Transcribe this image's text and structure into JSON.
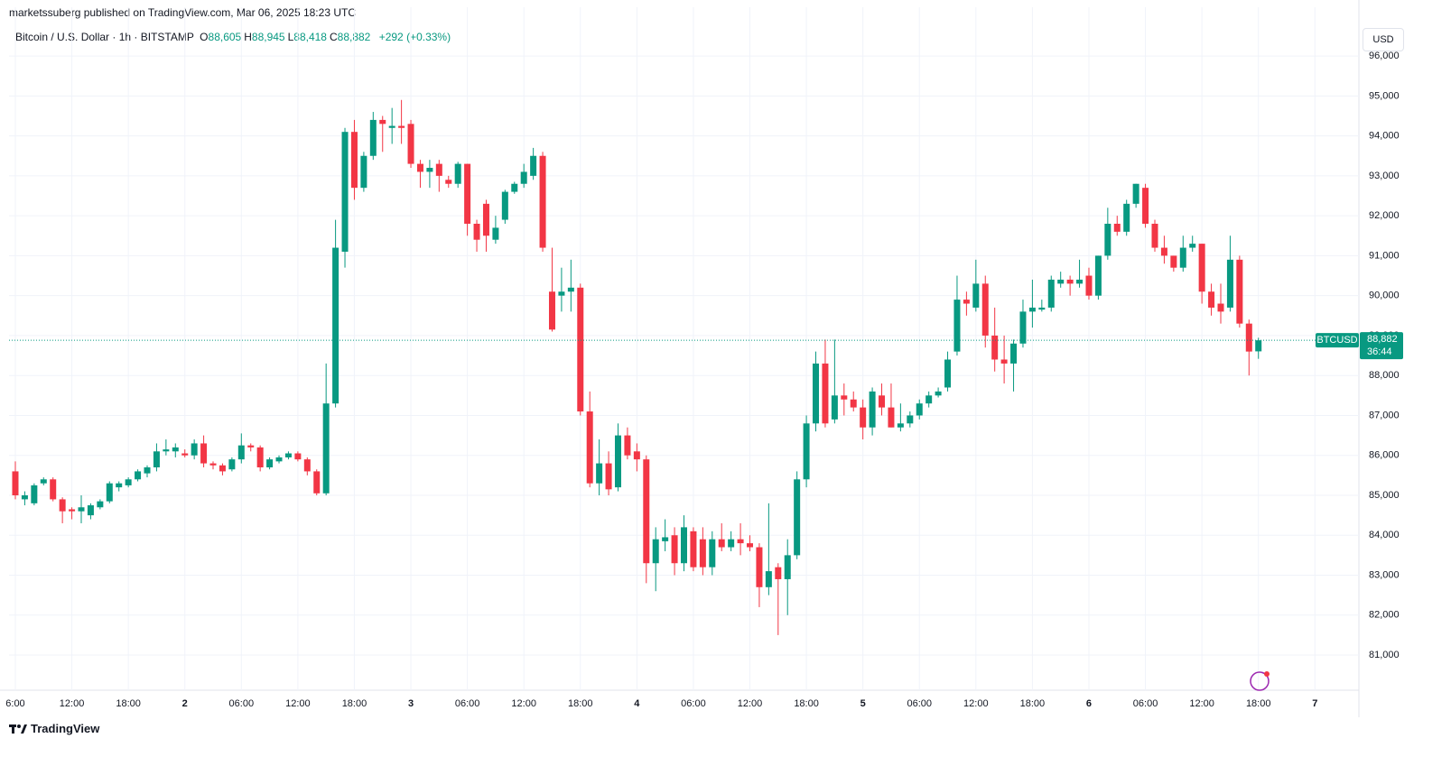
{
  "header": {
    "published": "marketssuberg published on TradingView.com, Mar 06, 2025 18:23 UTC",
    "symbol": "Bitcoin / U.S. Dollar · 1h · BITSTAMP",
    "ohlc": [
      {
        "letter": "O",
        "value": "88,605"
      },
      {
        "letter": "H",
        "value": "88,945"
      },
      {
        "letter": "L",
        "value": "88,418"
      },
      {
        "letter": "C",
        "value": "88,882"
      }
    ],
    "change": "+292 (+0.33%)",
    "currency_button": "USD"
  },
  "price_tag": {
    "symbol": "BTCUSD",
    "price": "88,882",
    "countdown": "36:44"
  },
  "footer": {
    "brand": "TradingView"
  },
  "chart_data": {
    "type": "candlestick",
    "colors": {
      "up": "#089981",
      "down": "#f23645"
    },
    "grid": true,
    "xlim": [
      -0.67,
      142.67
    ],
    "xticks": [
      {
        "value": 0,
        "label": "6:00"
      },
      {
        "value": 6,
        "label": "12:00"
      },
      {
        "value": 12,
        "label": "18:00"
      },
      {
        "value": 18,
        "label": "2"
      },
      {
        "value": 24,
        "label": "06:00"
      },
      {
        "value": 30,
        "label": "12:00"
      },
      {
        "value": 36,
        "label": "18:00"
      },
      {
        "value": 42,
        "label": "3"
      },
      {
        "value": 48,
        "label": "06:00"
      },
      {
        "value": 54,
        "label": "12:00"
      },
      {
        "value": 60,
        "label": "18:00"
      },
      {
        "value": 66,
        "label": "4"
      },
      {
        "value": 72,
        "label": "06:00"
      },
      {
        "value": 78,
        "label": "12:00"
      },
      {
        "value": 84,
        "label": "18:00"
      },
      {
        "value": 90,
        "label": "5"
      },
      {
        "value": 96,
        "label": "06:00"
      },
      {
        "value": 102,
        "label": "12:00"
      },
      {
        "value": 108,
        "label": "18:00"
      },
      {
        "value": 114,
        "label": "6"
      },
      {
        "value": 120,
        "label": "06:00"
      },
      {
        "value": 126,
        "label": "12:00"
      },
      {
        "value": 132,
        "label": "18:00"
      },
      {
        "value": 138,
        "label": "7"
      }
    ],
    "ylim": [
      80120,
      96770
    ],
    "yticks": [
      {
        "value": 81000,
        "label": "81,000"
      },
      {
        "value": 82000,
        "label": "82,000"
      },
      {
        "value": 83000,
        "label": "83,000"
      },
      {
        "value": 84000,
        "label": "84,000"
      },
      {
        "value": 85000,
        "label": "85,000"
      },
      {
        "value": 86000,
        "label": "86,000"
      },
      {
        "value": 87000,
        "label": "87,000"
      },
      {
        "value": 88000,
        "label": "88,000"
      },
      {
        "value": 89000,
        "label": "89,000"
      },
      {
        "value": 90000,
        "label": "90,000"
      },
      {
        "value": 91000,
        "label": "91,000"
      },
      {
        "value": 92000,
        "label": "92,000"
      },
      {
        "value": 93000,
        "label": "93,000"
      },
      {
        "value": 94000,
        "label": "94,000"
      },
      {
        "value": 95000,
        "label": "95,000"
      },
      {
        "value": 96000,
        "label": "96,000"
      }
    ],
    "series": [
      {
        "name": "BTCUSD",
        "open": [
          85600,
          84900,
          84800,
          85300,
          85400,
          84900,
          84650,
          84600,
          84500,
          84700,
          84850,
          85200,
          85250,
          85400,
          85550,
          85700,
          86100,
          86100,
          86050,
          86000,
          86300,
          85800,
          85750,
          85650,
          85900,
          86250,
          86200,
          85700,
          85850,
          85950,
          86050,
          85900,
          85600,
          85050,
          87300,
          91100,
          94100,
          92700,
          93500,
          94400,
          94200,
          94250,
          94300,
          93300,
          93100,
          93300,
          92900,
          92800,
          93300,
          91800,
          92300,
          91400,
          91900,
          92600,
          92800,
          93000,
          93500,
          90100,
          90000,
          90100,
          90200,
          87100,
          85300,
          85800,
          85200,
          86500,
          86100,
          85900,
          83300,
          83850,
          84000,
          83300,
          84100,
          83900,
          83200,
          83900,
          83700,
          83900,
          83800,
          83700,
          82700,
          83200,
          82900,
          83500,
          85400,
          86800,
          88300,
          86900,
          87500,
          87400,
          87200,
          86700,
          87500,
          87200,
          86700,
          86800,
          87000,
          87300,
          87500,
          87700,
          88600,
          89900,
          89700,
          90300,
          89000,
          88400,
          88300,
          88800,
          89600,
          89650,
          89700,
          90300,
          90400,
          90300,
          90500,
          90000,
          91000,
          91800,
          91600,
          92300,
          92700,
          91800,
          91200,
          91000,
          90700,
          91200,
          91300,
          90100,
          89800,
          89700,
          90900,
          89300,
          88605
        ],
        "high": [
          85850,
          85100,
          85300,
          85450,
          85450,
          84950,
          84700,
          85000,
          84800,
          84900,
          85350,
          85350,
          85450,
          85650,
          85750,
          86300,
          86400,
          86300,
          86150,
          86400,
          86500,
          85850,
          85800,
          85950,
          86550,
          86300,
          86250,
          85950,
          86000,
          86100,
          86100,
          85950,
          85650,
          88300,
          91900,
          94200,
          94400,
          93600,
          94600,
          94500,
          94700,
          94900,
          94400,
          93400,
          93400,
          93400,
          93000,
          93350,
          93300,
          91900,
          92400,
          92000,
          92650,
          92850,
          93300,
          93700,
          93600,
          91200,
          90700,
          90900,
          90300,
          87600,
          86400,
          86100,
          86800,
          86700,
          86300,
          86000,
          84200,
          84400,
          84200,
          84500,
          84200,
          84200,
          84100,
          84300,
          84100,
          84300,
          84000,
          83800,
          84800,
          83300,
          83900,
          85600,
          87000,
          88600,
          88900,
          88900,
          87800,
          87600,
          87400,
          87700,
          87800,
          87800,
          87300,
          87100,
          87400,
          87600,
          87700,
          88600,
          90500,
          90100,
          90900,
          90500,
          89700,
          89000,
          88900,
          89900,
          90400,
          89900,
          90500,
          90600,
          90500,
          90900,
          90700,
          91000,
          92200,
          92000,
          92400,
          92800,
          92800,
          91900,
          91500,
          91000,
          91500,
          91500,
          91300,
          90300,
          90300,
          91500,
          91000,
          89400,
          88945
        ],
        "low": [
          84900,
          84750,
          84750,
          85250,
          84850,
          84300,
          84400,
          84300,
          84400,
          84650,
          84800,
          85100,
          85200,
          85350,
          85450,
          85600,
          86000,
          85950,
          85950,
          85900,
          85700,
          85650,
          85500,
          85600,
          85800,
          86100,
          85600,
          85650,
          85800,
          85900,
          85850,
          85500,
          85000,
          85000,
          87200,
          90700,
          92400,
          92600,
          93400,
          93600,
          93800,
          93800,
          93200,
          92700,
          92700,
          92600,
          92700,
          92700,
          91500,
          91100,
          91100,
          91300,
          91800,
          92550,
          92700,
          92900,
          91100,
          89100,
          89600,
          89600,
          87000,
          85200,
          85000,
          85000,
          85100,
          85900,
          85600,
          82800,
          82600,
          83600,
          83000,
          83100,
          83100,
          83000,
          83000,
          83600,
          83600,
          83500,
          83600,
          82200,
          82500,
          81500,
          82000,
          83400,
          85200,
          86600,
          86700,
          86800,
          87000,
          87100,
          86400,
          86500,
          87000,
          86700,
          86600,
          86700,
          86900,
          87200,
          87450,
          87600,
          88500,
          89500,
          89600,
          88700,
          88100,
          87800,
          87600,
          88700,
          89200,
          89600,
          89600,
          90200,
          90000,
          90200,
          89900,
          89900,
          90900,
          91500,
          91500,
          92200,
          91700,
          91100,
          90800,
          90600,
          90600,
          91100,
          89800,
          89500,
          89300,
          89600,
          89200,
          88000,
          88418
        ],
        "close": [
          85000,
          85000,
          85250,
          85400,
          84900,
          84600,
          84600,
          84700,
          84750,
          84850,
          85300,
          85300,
          85400,
          85600,
          85700,
          86100,
          86150,
          86200,
          86000,
          86300,
          85800,
          85750,
          85600,
          85900,
          86250,
          86200,
          85700,
          85900,
          85950,
          86050,
          85900,
          85600,
          85050,
          87300,
          91200,
          94100,
          92700,
          93500,
          94400,
          94300,
          94250,
          94200,
          93300,
          93100,
          93200,
          93000,
          92800,
          93300,
          91800,
          91400,
          91500,
          91700,
          92600,
          92800,
          93100,
          93500,
          91200,
          89150,
          90100,
          90200,
          87100,
          85300,
          85800,
          85150,
          86500,
          86000,
          85900,
          83300,
          83900,
          83950,
          83300,
          84200,
          83200,
          83200,
          83900,
          83700,
          83900,
          83800,
          83700,
          82700,
          83100,
          82900,
          83500,
          85400,
          86800,
          88300,
          86800,
          87500,
          87400,
          87200,
          86700,
          87600,
          87200,
          86700,
          86800,
          87000,
          87300,
          87500,
          87600,
          88400,
          89900,
          89800,
          90300,
          89000,
          88400,
          88300,
          88800,
          89600,
          89700,
          89700,
          90400,
          90400,
          90300,
          90400,
          90000,
          91000,
          91800,
          91600,
          92300,
          92800,
          91800,
          91200,
          91000,
          90700,
          91200,
          91300,
          90100,
          89700,
          89600,
          90900,
          89300,
          88600,
          88882
        ]
      }
    ]
  }
}
